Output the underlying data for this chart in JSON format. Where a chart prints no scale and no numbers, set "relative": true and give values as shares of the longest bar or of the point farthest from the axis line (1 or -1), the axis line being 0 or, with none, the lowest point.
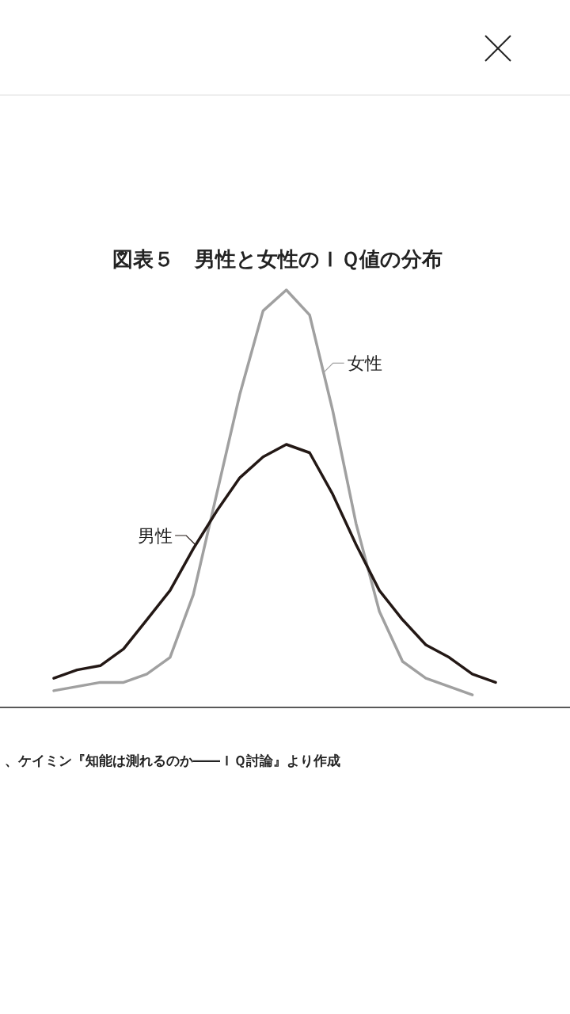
{
  "chart_data": {
    "type": "line",
    "relative": true,
    "title": "図表５　男性と女性のＩＱ値の分布",
    "categories": [
      null,
      null,
      null,
      null,
      null,
      null,
      null,
      null,
      null,
      null,
      null,
      null,
      null,
      null,
      null,
      null,
      null,
      null,
      null,
      null
    ],
    "series": [
      {
        "name": "女性",
        "color": "#a0a0a0",
        "values": [
          0.04,
          0.05,
          0.06,
          0.06,
          0.08,
          0.12,
          0.27,
          0.51,
          0.75,
          0.95,
          1.0,
          0.94,
          0.71,
          0.44,
          0.23,
          0.11,
          0.07,
          0.05,
          0.03,
          null
        ]
      },
      {
        "name": "男性",
        "color": "#231815",
        "values": [
          0.07,
          0.09,
          0.1,
          0.14,
          0.21,
          0.28,
          0.38,
          0.47,
          0.55,
          0.6,
          0.63,
          0.61,
          0.51,
          0.39,
          0.28,
          0.21,
          0.15,
          0.12,
          0.08,
          0.06
        ]
      }
    ],
    "annotations": [
      "、ケイミン『知能は測れるのか――ＩＱ討論』より作成"
    ]
  }
}
